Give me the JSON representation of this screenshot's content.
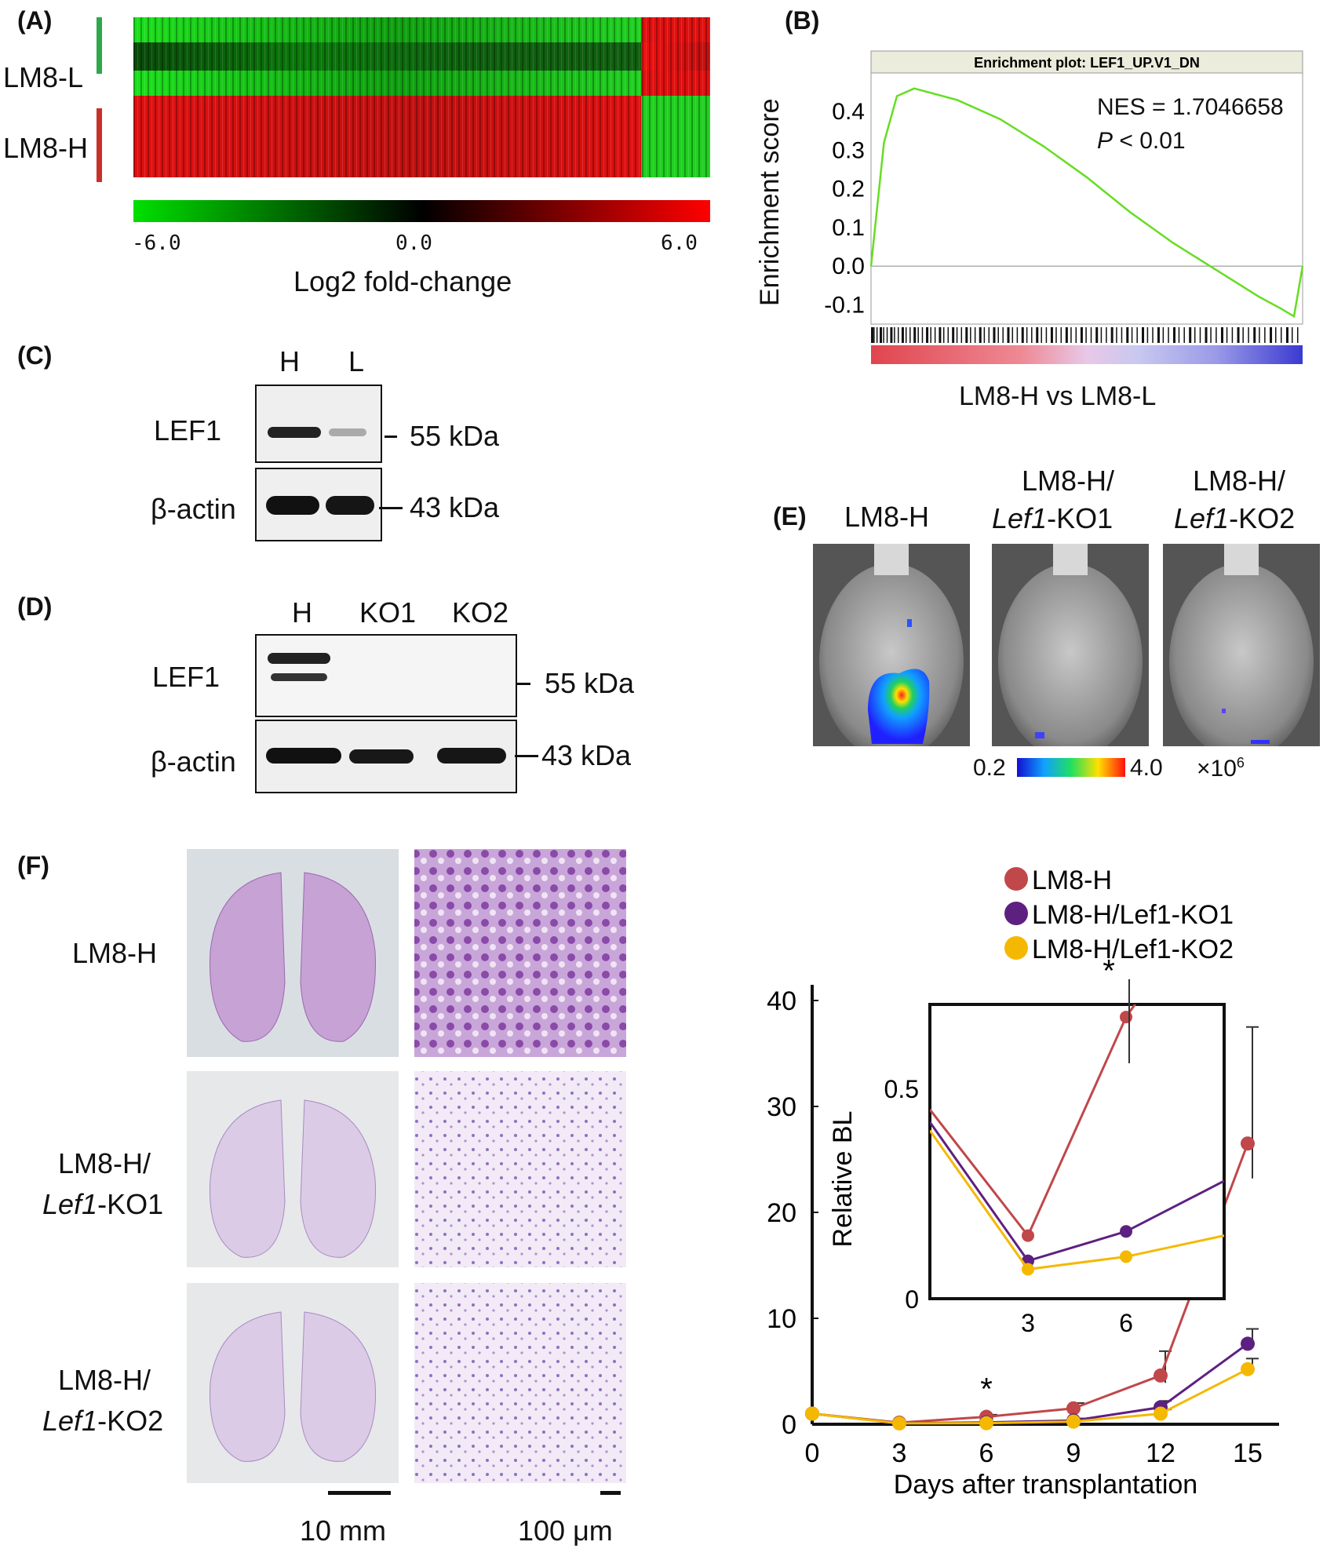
{
  "panels": {
    "a": {
      "label": "(A)",
      "row_labels": [
        "LM8-L",
        "LM8-H"
      ],
      "scale_ticks": [
        "-6.0",
        "0.0",
        "6.0"
      ],
      "scale_caption": "Log2 fold-change",
      "colors": {
        "low": "#00e000",
        "mid": "#000000",
        "high": "#ff0000"
      }
    },
    "b": {
      "label": "(B)",
      "plot_title": "Enrichment plot: LEF1_UP.V1_DN",
      "ylabel": "Enrichment score",
      "yticks": [
        "0.4",
        "0.3",
        "0.2",
        "0.1",
        "0.0",
        "-0.1"
      ],
      "nes": "NES = 1.7046658",
      "p_italic": "P",
      "p_rest": " < 0.01",
      "xlabel": "LM8-H vs LM8-L",
      "curve_color": "#66dd22"
    },
    "c": {
      "label": "(C)",
      "lanes": [
        "H",
        "L"
      ],
      "rows": [
        "LEF1",
        "β-actin"
      ],
      "sizes": [
        "55 kDa",
        "43 kDa"
      ]
    },
    "d": {
      "label": "(D)",
      "lanes": [
        "H",
        "KO1",
        "KO2"
      ],
      "rows": [
        "LEF1",
        "β-actin"
      ],
      "sizes": [
        "55 kDa",
        "43 kDa"
      ]
    },
    "e": {
      "label": "(E)",
      "col1": "LM8-H",
      "col2_line1": "LM8-H/",
      "col2_gene": "Lef1",
      "col2_suffix": "-KO1",
      "col3_line1": "LM8-H/",
      "col3_gene": "Lef1",
      "col3_suffix": "-KO2",
      "scale_min": "0.2",
      "scale_max": "4.0",
      "scale_unit": "×10",
      "scale_exp": "6"
    },
    "f": {
      "label": "(F)",
      "row1": "LM8-H",
      "row2_line1": "LM8-H/",
      "row2_gene": "Lef1",
      "row2_suffix": "-KO1",
      "row3_line1": "LM8-H/",
      "row3_gene": "Lef1",
      "row3_suffix": "-KO2",
      "scale1": "10 mm",
      "scale2": "100 μm"
    }
  },
  "chart_data": [
    {
      "type": "line",
      "title": "Enrichment plot: LEF1_UP.V1_DN",
      "xlabel": "LM8-H vs LM8-L",
      "ylabel": "Enrichment score",
      "ylim": [
        -0.15,
        0.5
      ],
      "series": [
        {
          "x": [
            0,
            0.03,
            0.06,
            0.1,
            0.2,
            0.3,
            0.4,
            0.5,
            0.6,
            0.7,
            0.8,
            0.9,
            0.95,
            0.98,
            1.0
          ],
          "values": [
            0.0,
            0.32,
            0.44,
            0.46,
            0.43,
            0.38,
            0.31,
            0.23,
            0.14,
            0.06,
            -0.01,
            -0.08,
            -0.11,
            -0.13,
            0.0
          ]
        }
      ]
    },
    {
      "type": "line",
      "xlabel": "Days after transplantation",
      "ylabel": "Relative BL",
      "x": [
        0,
        3,
        6,
        9,
        12,
        15
      ],
      "ylim": [
        0,
        40
      ],
      "xticks": [
        "0",
        "3",
        "6",
        "9",
        "12",
        "15"
      ],
      "yticks": [
        "0",
        "10",
        "20",
        "30",
        "40"
      ],
      "legend": "top-right",
      "series": [
        {
          "name": "LM8-H",
          "color": "#c0474a",
          "values": [
            1.0,
            0.15,
            0.7,
            1.5,
            4.6,
            26.5
          ]
        },
        {
          "name": "LM8-H/Lef1-KO1",
          "color": "#5d2080",
          "values": [
            1.0,
            0.1,
            0.17,
            0.35,
            1.6,
            7.6
          ]
        },
        {
          "name": "LM8-H/Lef1-KO2",
          "color": "#f5b800",
          "values": [
            1.0,
            0.08,
            0.1,
            0.25,
            1.0,
            5.2
          ]
        }
      ],
      "annotations": [
        "*"
      ],
      "inset": {
        "x": [
          0,
          3,
          6,
          9
        ],
        "xticks": [
          "3",
          "6"
        ],
        "yticks": [
          "0",
          "0.5"
        ],
        "ylim": [
          0,
          0.7
        ],
        "series": [
          {
            "name": "LM8-H",
            "values": [
              0.45,
              0.15,
              0.67,
              1.0
            ]
          },
          {
            "name": "LM8-H/Lef1-KO1",
            "values": [
              0.42,
              0.09,
              0.16,
              0.28
            ]
          },
          {
            "name": "LM8-H/Lef1-KO2",
            "values": [
              0.4,
              0.07,
              0.1,
              0.15
            ]
          }
        ]
      }
    }
  ]
}
